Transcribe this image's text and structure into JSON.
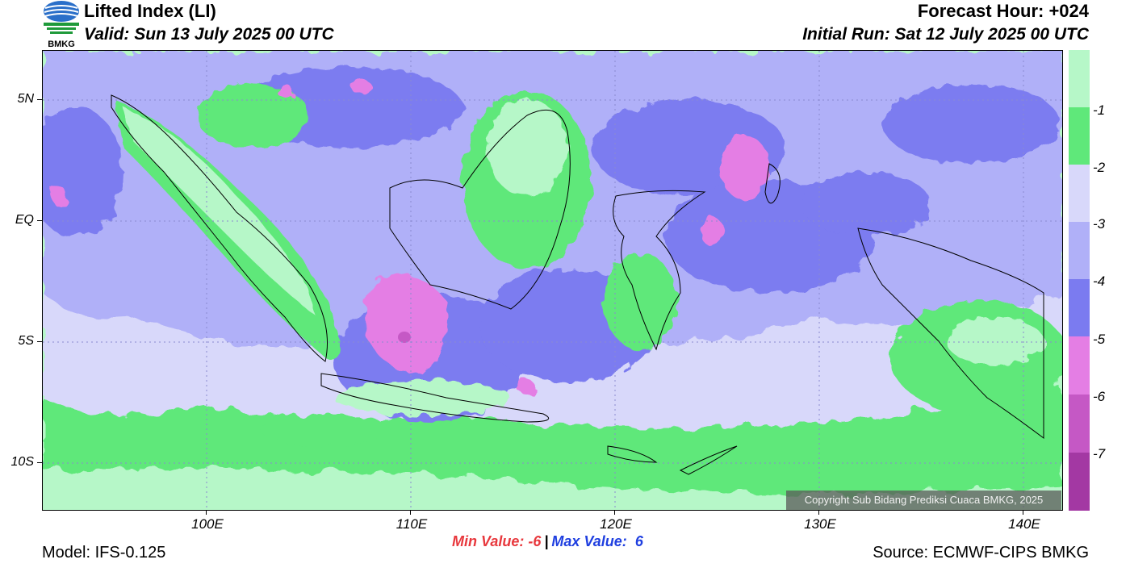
{
  "header": {
    "title": "Lifted Index (LI)",
    "valid": "Valid: Sun 13 July 2025 00 UTC",
    "forecast_hour": "Forecast Hour: +024",
    "initial_run": "Initial Run: Sat 12 July 2025 00 UTC"
  },
  "logo": {
    "text": "BMKG"
  },
  "map": {
    "lat_labels": [
      "5N",
      "EQ",
      "5S",
      "10S"
    ],
    "lon_labels": [
      "100E",
      "110E",
      "120E",
      "130E",
      "140E"
    ],
    "background_color": "#b6f7c8"
  },
  "colorbar": {
    "labels": [
      "-1",
      "-2",
      "-3",
      "-4",
      "-5",
      "-6",
      "-7"
    ],
    "colors": [
      "#b6f7c8",
      "#5fe87a",
      "#d8d8fa",
      "#b0b0f8",
      "#7b7bf0",
      "#e47ee4",
      "#c558c5",
      "#a338a3",
      "#862e86"
    ]
  },
  "footer": {
    "min_label": "Min Value:",
    "min_value": "-6",
    "separator": "|",
    "max_label": "Max Value:",
    "max_value": "6",
    "model": "Model: IFS-0.125",
    "source": "Source: ECMWF-CIPS BMKG",
    "copyright": "Copyright Sub Bidang Prediksi Cuaca BMKG, 2025"
  }
}
